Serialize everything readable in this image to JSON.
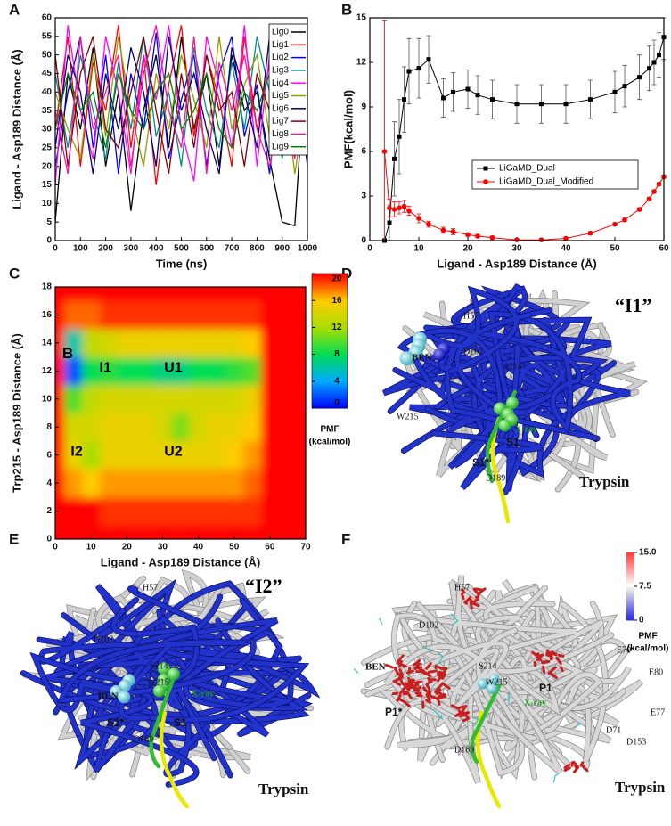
{
  "chart_data": [
    {
      "type": "line",
      "panel": "A",
      "xlabel": "Time (ns)",
      "ylabel": "Ligand - Asp189 Distance (Å)",
      "x": [
        0,
        50,
        100,
        150,
        200,
        250,
        300,
        350,
        400,
        450,
        500,
        550,
        600,
        650,
        700,
        750,
        800,
        850,
        900,
        950,
        1000
      ],
      "xlim": [
        0,
        1000
      ],
      "xticks": [
        0,
        100,
        200,
        300,
        400,
        500,
        600,
        700,
        800,
        900,
        1000
      ],
      "ylim": [
        0,
        60
      ],
      "yticks": [
        0,
        5,
        10,
        15,
        20,
        25,
        30,
        35,
        40,
        45,
        50,
        55,
        60
      ],
      "series": [
        {
          "name": "Lig0",
          "color": "#000000",
          "values": [
            5,
            45,
            30,
            52,
            20,
            40,
            8,
            35,
            50,
            25,
            55,
            30,
            45,
            20,
            50,
            35,
            40,
            22,
            5,
            4,
            56
          ]
        },
        {
          "name": "Lig1",
          "color": "#ff0000",
          "values": [
            30,
            55,
            20,
            48,
            35,
            58,
            25,
            50,
            15,
            42,
            58,
            28,
            50,
            38,
            20,
            55,
            30,
            48,
            25,
            40,
            58
          ]
        },
        {
          "name": "Lig2",
          "color": "#0000ff",
          "values": [
            20,
            40,
            55,
            25,
            50,
            18,
            45,
            30,
            56,
            22,
            38,
            50,
            20,
            45,
            55,
            28,
            42,
            18,
            50,
            30,
            25
          ]
        },
        {
          "name": "Lig3",
          "color": "#008b8b",
          "values": [
            45,
            25,
            50,
            35,
            22,
            48,
            30,
            55,
            28,
            40,
            20,
            52,
            35,
            25,
            48,
            30,
            55,
            40,
            22,
            50,
            35
          ]
        },
        {
          "name": "Lig4",
          "color": "#ff00ff",
          "values": [
            15,
            58,
            35,
            22,
            55,
            40,
            18,
            50,
            38,
            58,
            30,
            16,
            55,
            42,
            25,
            58,
            20,
            50,
            35,
            22,
            48
          ]
        },
        {
          "name": "Lig5",
          "color": "#9a9a00",
          "values": [
            40,
            30,
            22,
            50,
            28,
            55,
            35,
            20,
            45,
            30,
            50,
            38,
            25,
            55,
            30,
            42,
            50,
            28,
            45,
            18,
            40
          ]
        },
        {
          "name": "Lig6",
          "color": "#000080",
          "values": [
            25,
            50,
            40,
            18,
            45,
            30,
            52,
            40,
            20,
            55,
            35,
            45,
            30,
            18,
            52,
            40,
            25,
            55,
            30,
            48,
            20
          ]
        },
        {
          "name": "Lig7",
          "color": "#800000",
          "values": [
            50,
            20,
            45,
            55,
            30,
            25,
            40,
            55,
            35,
            18,
            45,
            25,
            50,
            35,
            40,
            20,
            45,
            35,
            55,
            25,
            50
          ]
        },
        {
          "name": "Lig8",
          "color": "#ff1493",
          "values": [
            35,
            18,
            55,
            30,
            40,
            50,
            20,
            45,
            58,
            35,
            25,
            55,
            18,
            48,
            35,
            50,
            30,
            20,
            40,
            55,
            30
          ]
        },
        {
          "name": "Lig9",
          "color": "#008000",
          "values": [
            30,
            45,
            35,
            40,
            25,
            45,
            35,
            30,
            40,
            45,
            30,
            35,
            45,
            30,
            25,
            40,
            35,
            45,
            30,
            35,
            40
          ]
        }
      ]
    },
    {
      "type": "errorline",
      "panel": "B",
      "xlabel": "Ligand - Asp189 Distance (Å)",
      "ylabel": "PMF(kcal/mol)",
      "x": [
        3,
        4,
        5,
        6,
        7,
        8,
        10,
        12,
        15,
        17,
        20,
        22,
        25,
        30,
        35,
        40,
        45,
        50,
        52,
        55,
        57,
        58,
        59,
        60
      ],
      "xlim": [
        0,
        60
      ],
      "xticks": [
        0,
        10,
        20,
        30,
        40,
        50,
        60
      ],
      "ylim": [
        0,
        15
      ],
      "yticks": [
        0,
        3,
        6,
        9,
        12,
        15
      ],
      "series": [
        {
          "name": "LiGaMD_Dual",
          "color": "#000000",
          "marker": "square",
          "values": [
            0,
            1.2,
            5.5,
            7.0,
            9.5,
            11.4,
            11.6,
            12.2,
            9.6,
            10.0,
            10.2,
            9.8,
            9.5,
            9.2,
            9.2,
            9.2,
            9.5,
            10.0,
            10.4,
            11.0,
            11.6,
            12.0,
            12.5,
            13.7
          ],
          "errors": [
            0,
            1.2,
            2.5,
            2.5,
            2.2,
            2.2,
            2.0,
            1.6,
            1.3,
            1.3,
            1.3,
            1.3,
            1.3,
            1.3,
            1.3,
            1.3,
            1.3,
            1.4,
            1.4,
            1.5,
            1.5,
            1.5,
            1.5,
            1.5
          ]
        },
        {
          "name": "LiGaMD_Dual_Modified",
          "color": "#ff0000",
          "marker": "circle",
          "values": [
            6.0,
            2.2,
            2.1,
            2.2,
            2.3,
            2.0,
            1.5,
            1.1,
            0.7,
            0.6,
            0.4,
            0.3,
            0.2,
            0.05,
            0.05,
            0.15,
            0.5,
            1.1,
            1.4,
            2.1,
            2.8,
            3.3,
            3.8,
            4.3
          ],
          "errors": [
            8.8,
            0.6,
            0.5,
            0.4,
            0.4,
            0.3,
            0.3,
            0.2,
            0.2,
            0.2,
            0.1,
            0.1,
            0.1,
            0.1,
            0.1,
            0.1,
            0.1,
            0.1,
            0.1,
            0.1,
            0.1,
            0.1,
            0.1,
            0.1
          ]
        }
      ]
    },
    {
      "type": "contour",
      "panel": "C",
      "xlabel": "Ligand - Asp189 Distance (Å)",
      "ylabel": "Trp215 - Asp189 Distance (Å)",
      "xlim": [
        0,
        70
      ],
      "xticks": [
        0,
        10,
        20,
        30,
        40,
        50,
        60,
        70
      ],
      "ylim": [
        0,
        18
      ],
      "yticks": [
        0,
        2,
        4,
        6,
        8,
        10,
        12,
        14,
        16,
        18
      ],
      "x": [
        0,
        5,
        10,
        15,
        20,
        25,
        30,
        35,
        40,
        45,
        50,
        55,
        60,
        65,
        70
      ],
      "y": [
        0,
        2,
        4,
        6,
        8,
        10,
        12,
        14,
        16,
        18
      ],
      "z": [
        [
          20,
          20,
          20,
          20,
          20,
          20,
          20,
          20,
          20,
          20,
          20,
          20,
          20,
          20,
          20
        ],
        [
          20,
          20,
          20,
          19,
          19,
          19,
          19,
          19,
          19,
          19,
          19,
          19,
          20,
          20,
          20
        ],
        [
          20,
          17,
          16,
          17,
          17,
          17,
          17,
          17,
          17,
          17,
          17,
          18,
          20,
          20,
          20
        ],
        [
          20,
          15,
          12,
          15,
          15,
          15,
          15,
          15,
          15,
          15,
          16,
          17,
          20,
          20,
          20
        ],
        [
          20,
          14,
          14,
          15,
          15,
          15,
          14,
          11,
          14,
          15,
          15,
          16,
          20,
          20,
          20
        ],
        [
          20,
          10,
          13,
          14,
          14,
          14,
          14,
          14,
          14,
          14,
          14,
          15,
          20,
          20,
          20
        ],
        [
          20,
          2,
          8,
          9,
          8,
          8,
          7,
          7,
          8,
          8,
          9,
          10,
          20,
          20,
          20
        ],
        [
          20,
          6,
          13,
          14,
          15,
          15,
          15,
          15,
          15,
          15,
          15,
          16,
          20,
          20,
          20
        ],
        [
          20,
          18,
          18,
          19,
          19,
          19,
          19,
          19,
          19,
          19,
          19,
          19,
          20,
          20,
          20
        ],
        [
          20,
          20,
          20,
          20,
          20,
          20,
          20,
          20,
          20,
          20,
          20,
          20,
          20,
          20,
          20
        ]
      ],
      "zlim": [
        0,
        20
      ],
      "colorbar_ticks": [
        0,
        4,
        8,
        12,
        16,
        20
      ],
      "colorbar_title": "PMF",
      "colorbar_unit": "(kcal/mol)",
      "annotations": [
        "B",
        "I1",
        "U1",
        "I2",
        "U2"
      ]
    }
  ],
  "panels": {
    "letters": [
      "A",
      "B",
      "C",
      "D",
      "E",
      "F"
    ],
    "D": {
      "title": "“I1”",
      "labels": [
        "H57",
        "BEN",
        "D102",
        "S214",
        "W215",
        "X-ray",
        "S1",
        "S1*",
        "D189",
        "Trypsin"
      ]
    },
    "E": {
      "title": "“I2”",
      "labels": [
        "H57",
        "D102",
        "S214",
        "BEN",
        "W215",
        "X-ray",
        "S1*",
        "S1",
        "D189",
        "Trypsin"
      ]
    },
    "F": {
      "labels": [
        "H57",
        "D102",
        "BEN",
        "S214",
        "W215",
        "P1",
        "P1*",
        "X-ray",
        "D189",
        "E70",
        "E80",
        "E77",
        "D71",
        "D153",
        "Trypsin"
      ],
      "colorbar": {
        "lim": [
          0,
          15
        ],
        "ticks": [
          {
            "value": 15,
            "label": "15.0"
          },
          7.5,
          0
        ],
        "title": "PMF",
        "unit": "(kcal/mol)"
      }
    }
  }
}
